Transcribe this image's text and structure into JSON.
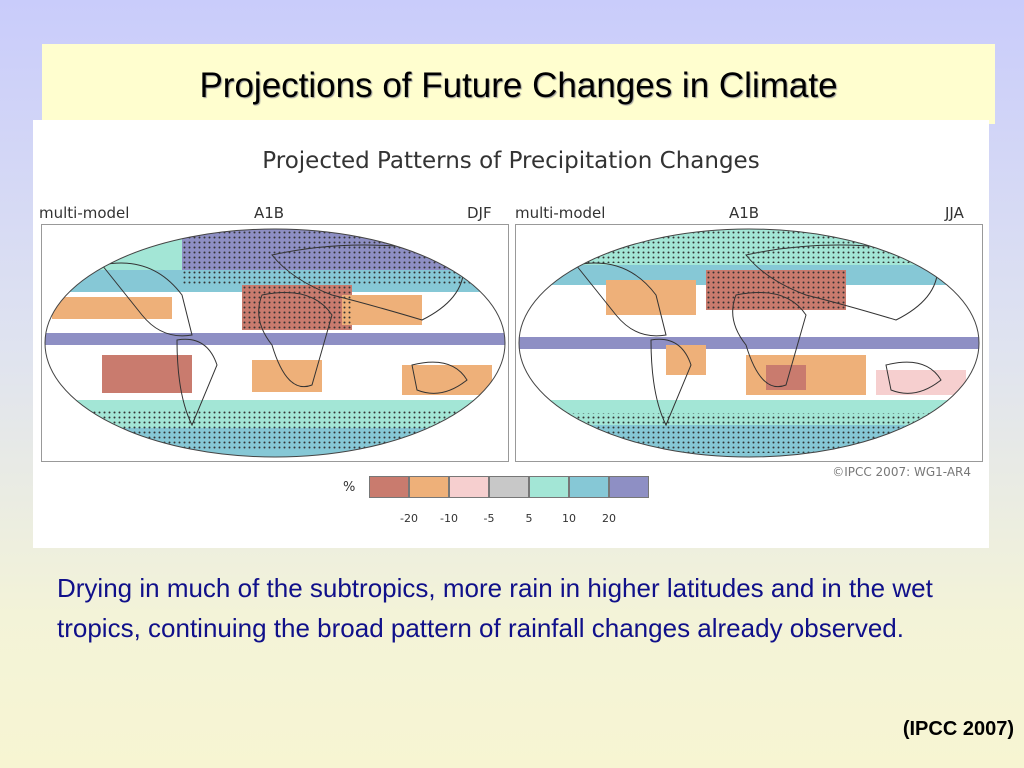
{
  "slide": {
    "title": "Projections of Future Changes in Climate",
    "caption": "Drying in much of the subtropics, more rain in higher latitudes and in the wet tropics, continuing the broad pattern of rainfall changes already observed.",
    "source": "(IPCC 2007)"
  },
  "figure": {
    "title": "Projected Patterns of Precipitation Changes",
    "credit": "©IPCC 2007: WG1-AR4",
    "panels": [
      {
        "left_label": "multi-model",
        "center_label": "A1B",
        "right_label": "DJF"
      },
      {
        "left_label": "multi-model",
        "center_label": "A1B",
        "right_label": "JJA"
      }
    ],
    "legend": {
      "unit": "%",
      "colors": [
        "#c97b6e",
        "#eeb079",
        "#f6cfcf",
        "#c8c8c8",
        "#a3e6d6",
        "#86c8d6",
        "#8e8fc4"
      ],
      "ticks": [
        "-20",
        "-10",
        "-5",
        "5",
        "10",
        "20"
      ]
    }
  }
}
